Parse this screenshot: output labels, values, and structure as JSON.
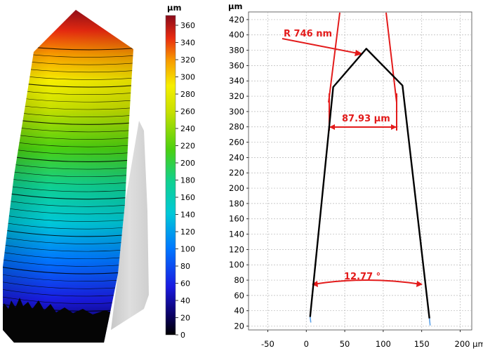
{
  "colorbar": {
    "unit": "µm",
    "ticks": [
      "360",
      "340",
      "320",
      "300",
      "280",
      "260",
      "240",
      "220",
      "200",
      "180",
      "160",
      "140",
      "120",
      "100",
      "80",
      "60",
      "40",
      "20",
      "0"
    ]
  },
  "profile_chart": {
    "x_unit": "µm",
    "y_unit": "µm",
    "x_ticks": [
      "-50",
      "0",
      "50",
      "100",
      "150",
      "200 µm"
    ],
    "y_ticks": [
      "420",
      "400",
      "380",
      "360",
      "340",
      "320",
      "300",
      "280",
      "260",
      "240",
      "220",
      "200",
      "180",
      "160",
      "140",
      "120",
      "100",
      "80",
      "60",
      "40",
      "20"
    ],
    "annotations": {
      "radius": "R 746 nm",
      "width": "87.93 µm",
      "angle": "12.77 °"
    }
  },
  "colors": {
    "annotation": "#e31b1b",
    "profile_line": "#000000",
    "grid": "#b7b7b7"
  },
  "chart_data": {
    "type": "line",
    "xlabel": "µm",
    "ylabel": "µm",
    "xlim": [
      -75,
      215
    ],
    "ylim": [
      15,
      430
    ],
    "grid": true,
    "series": [
      {
        "values": [
          {
            "x": 5,
            "y": 32
          },
          {
            "x": 35,
            "y": 332
          },
          {
            "x": 78,
            "y": 382
          },
          {
            "x": 125,
            "y": 334
          },
          {
            "x": 160,
            "y": 30
          }
        ]
      }
    ]
  }
}
